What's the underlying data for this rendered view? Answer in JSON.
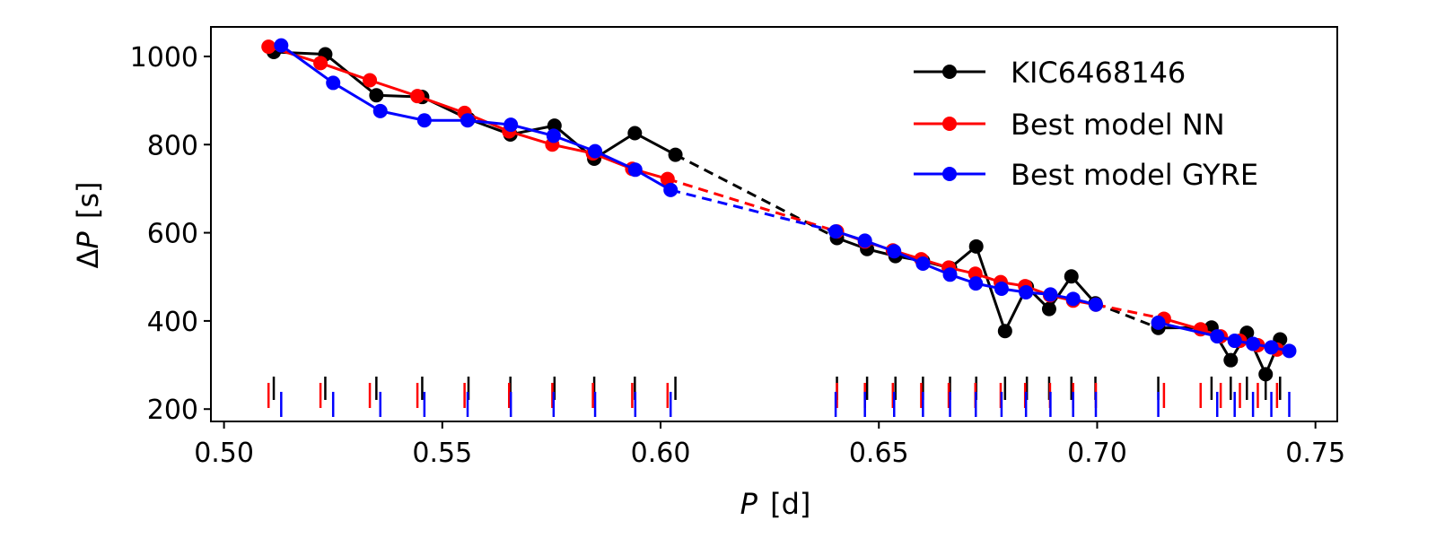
{
  "chart_data": {
    "type": "line",
    "xlabel": {
      "var": "P",
      "unit": "[d]"
    },
    "ylabel": {
      "prefix": "Δ",
      "var": "P",
      "unit": "[s]"
    },
    "xlim": [
      0.497,
      0.755
    ],
    "ylim": [
      172,
      1067
    ],
    "xticks": [
      0.5,
      0.55,
      0.6,
      0.65,
      0.7,
      0.75
    ],
    "xtick_labels": [
      "0.50",
      "0.55",
      "0.60",
      "0.65",
      "0.70",
      "0.75"
    ],
    "yticks": [
      200,
      400,
      600,
      800,
      1000
    ],
    "ytick_labels": [
      "200",
      "400",
      "600",
      "800",
      "1000"
    ],
    "legend_position": "top-right",
    "series": [
      {
        "name": "KIC6468146",
        "color": "#000000",
        "segments": [
          {
            "x": [
              0.5114,
              0.5232,
              0.5349,
              0.5454,
              0.556,
              0.5656,
              0.5757,
              0.5848,
              0.5941,
              0.6034
            ],
            "y": [
              1010,
              1005,
              912,
              908,
              858,
              823,
              843,
              768,
              826,
              777
            ]
          },
          {
            "x": [
              0.6404,
              0.6473,
              0.6538,
              0.6601,
              0.6663,
              0.6723,
              0.6789,
              0.6839,
              0.689,
              0.6941,
              0.6996
            ],
            "y": [
              588,
              563,
              547,
              536,
              520,
              569,
              377,
              477,
              427,
              501,
              440
            ]
          },
          {
            "x": [
              0.714,
              0.7262,
              0.7306,
              0.7343,
              0.7386,
              0.7419
            ],
            "y": [
              384,
              385,
              311,
              373,
              279,
              358
            ]
          }
        ],
        "gaps": [
          {
            "x": [
              0.6034,
              0.6404
            ],
            "y": [
              777,
              588
            ]
          },
          {
            "x": [
              0.6996,
              0.714
            ],
            "y": [
              440,
              384
            ]
          }
        ],
        "ticks": [
          0.5114,
          0.5232,
          0.5349,
          0.5454,
          0.556,
          0.5656,
          0.5757,
          0.5848,
          0.5941,
          0.6034,
          0.6404,
          0.6473,
          0.6538,
          0.6601,
          0.6663,
          0.6723,
          0.6789,
          0.6839,
          0.689,
          0.6941,
          0.6996,
          0.714,
          0.7262,
          0.7306,
          0.7343,
          0.7386,
          0.7419
        ]
      },
      {
        "name": "Best model NN",
        "color": "#ff0000",
        "segments": [
          {
            "x": [
              0.5102,
              0.5221,
              0.5334,
              0.5443,
              0.5551,
              0.5653,
              0.5752,
              0.5845,
              0.5935,
              0.6016
            ],
            "y": [
              1022,
              985,
              946,
              910,
              872,
              830,
              800,
              780,
              745,
              722
            ]
          },
          {
            "x": [
              0.6404,
              0.6468,
              0.6532,
              0.6597,
              0.666,
              0.6721,
              0.6779,
              0.6835,
              0.6892,
              0.6945,
              0.6997
            ],
            "y": [
              603,
              580,
              560,
              540,
              521,
              507,
              488,
              479,
              458,
              446,
              437
            ]
          },
          {
            "x": [
              0.7153,
              0.7237,
              0.7283,
              0.7327,
              0.7368,
              0.7412
            ],
            "y": [
              405,
              381,
              365,
              355,
              345,
              335
            ]
          }
        ],
        "gaps": [
          {
            "x": [
              0.6016,
              0.6404
            ],
            "y": [
              722,
              603
            ]
          },
          {
            "x": [
              0.6997,
              0.7153
            ],
            "y": [
              437,
              405
            ]
          }
        ],
        "ticks": [
          0.5102,
          0.5221,
          0.5334,
          0.5443,
          0.5551,
          0.5653,
          0.5752,
          0.5845,
          0.5935,
          0.6016,
          0.6404,
          0.6468,
          0.6532,
          0.6597,
          0.666,
          0.6721,
          0.6779,
          0.6835,
          0.6892,
          0.6945,
          0.6997,
          0.7153,
          0.7237,
          0.7283,
          0.7327,
          0.7368,
          0.7412
        ]
      },
      {
        "name": "Best model GYRE",
        "color": "#0000ff",
        "segments": [
          {
            "x": [
              0.5131,
              0.525,
              0.5358,
              0.5459,
              0.5558,
              0.5657,
              0.5755,
              0.585,
              0.5942,
              0.6023
            ],
            "y": [
              1025,
              940,
              876,
              855,
              855,
              845,
              820,
              785,
              743,
              697
            ]
          },
          {
            "x": [
              0.6401,
              0.6468,
              0.6535,
              0.6601,
              0.6663,
              0.6722,
              0.6781,
              0.6837,
              0.6893,
              0.6945,
              0.6997
            ],
            "y": [
              603,
              582,
              558,
              530,
              505,
              485,
              473,
              465,
              460,
              450,
              437
            ]
          },
          {
            "x": [
              0.714,
              0.7275,
              0.7315,
              0.7357,
              0.7399,
              0.744
            ],
            "y": [
              396,
              365,
              355,
              348,
              340,
              332
            ]
          }
        ],
        "gaps": [
          {
            "x": [
              0.6023,
              0.6401
            ],
            "y": [
              697,
              603
            ]
          }
        ],
        "ticks": [
          0.5131,
          0.525,
          0.5358,
          0.5459,
          0.5558,
          0.5657,
          0.5755,
          0.585,
          0.5942,
          0.6023,
          0.6401,
          0.6468,
          0.6535,
          0.6601,
          0.6663,
          0.6722,
          0.6781,
          0.6837,
          0.6893,
          0.6945,
          0.6997,
          0.714,
          0.7275,
          0.7315,
          0.7357,
          0.7399,
          0.744
        ]
      }
    ]
  }
}
